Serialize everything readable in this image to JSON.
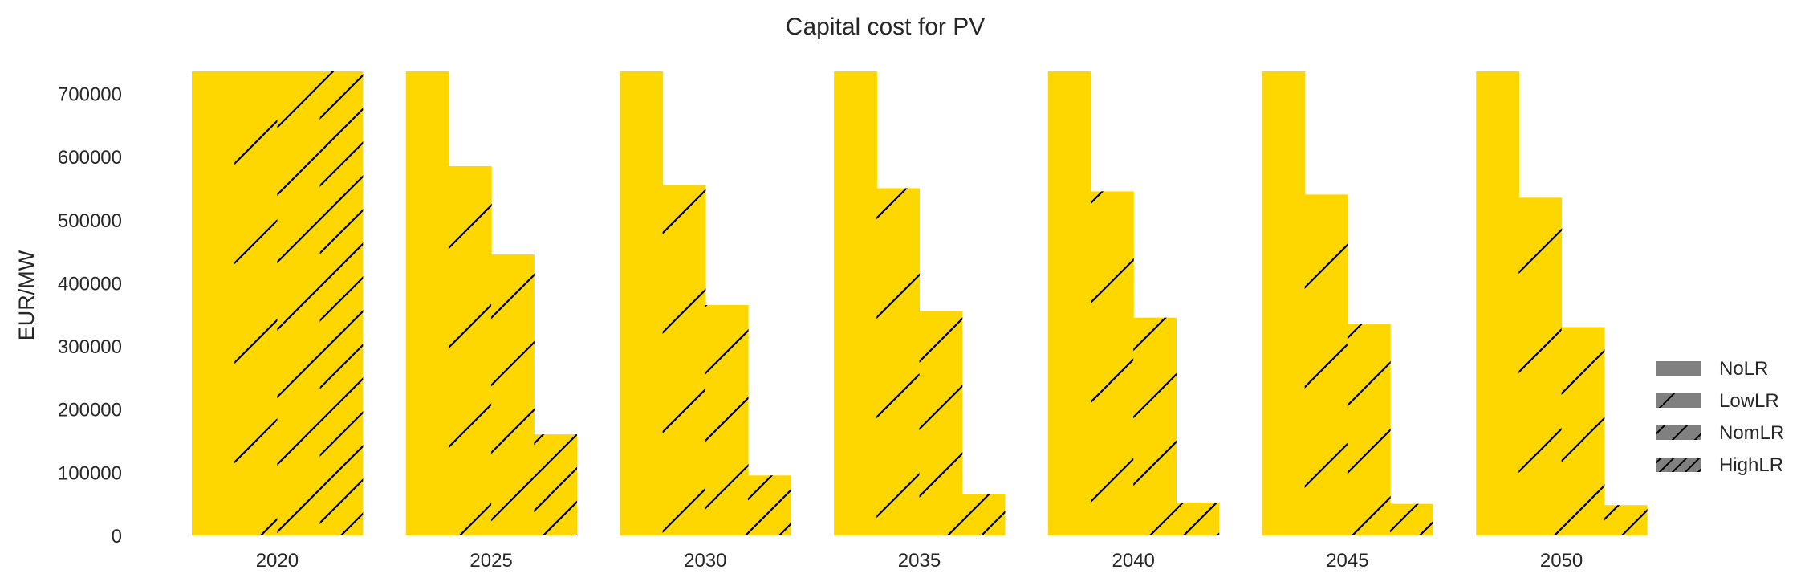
{
  "chart_data": {
    "type": "bar",
    "title": "Capital cost for PV",
    "ylabel": "EUR/MW",
    "xlabel": "",
    "categories": [
      "2020",
      "2025",
      "2030",
      "2035",
      "2040",
      "2045",
      "2050"
    ],
    "ylim": [
      0,
      735000
    ],
    "yticks": [
      0,
      100000,
      200000,
      300000,
      400000,
      500000,
      600000,
      700000
    ],
    "grid": false,
    "bar_color": "#FFD700",
    "hatch_color": "#000000",
    "legend_position": "right",
    "series": [
      {
        "name": "NoLR",
        "hatch": "none",
        "values": [
          735000,
          735000,
          735000,
          735000,
          735000,
          735000,
          735000
        ]
      },
      {
        "name": "LowLR",
        "hatch": "sparse",
        "values": [
          735000,
          585000,
          555000,
          550000,
          545000,
          540000,
          535000
        ]
      },
      {
        "name": "NomLR",
        "hatch": "medium",
        "values": [
          735000,
          445000,
          365000,
          355000,
          345000,
          335000,
          330000
        ]
      },
      {
        "name": "HighLR",
        "hatch": "dense",
        "values": [
          735000,
          160000,
          95000,
          65000,
          52000,
          50000,
          48000
        ]
      }
    ]
  }
}
